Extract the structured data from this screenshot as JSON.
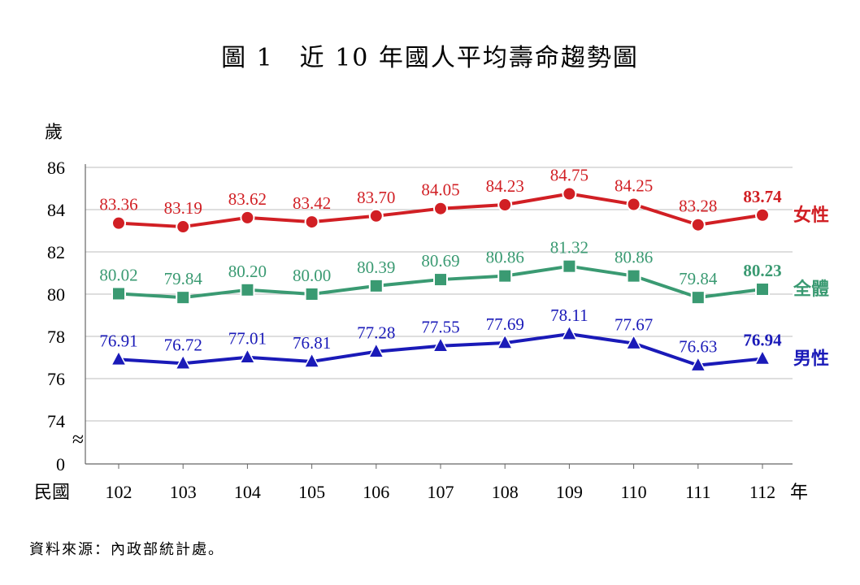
{
  "chart_data": {
    "type": "line",
    "title": "圖 1　近 10 年國人平均壽命趨勢圖",
    "ylabel": "歲",
    "xlabel_prefix": "民國",
    "xlabel_suffix": "年",
    "categories": [
      "102",
      "103",
      "104",
      "105",
      "106",
      "107",
      "108",
      "109",
      "110",
      "111",
      "112"
    ],
    "y_ticks": [
      "86",
      "84",
      "82",
      "80",
      "78",
      "76",
      "74",
      "0"
    ],
    "y_break_symbol": "≈",
    "ylim": [
      74,
      86
    ],
    "axis_break": true,
    "grid": "horizontal",
    "legend": "right-end labels",
    "series": [
      {
        "name": "女性",
        "color": "#d11f24",
        "marker": "circle",
        "values": [
          83.36,
          83.19,
          83.62,
          83.42,
          83.7,
          84.05,
          84.23,
          84.75,
          84.25,
          83.28,
          83.74
        ],
        "labels": [
          "83.36",
          "83.19",
          "83.62",
          "83.42",
          "83.70",
          "84.05",
          "84.23",
          "84.75",
          "84.25",
          "83.28",
          "83.74"
        ]
      },
      {
        "name": "全體",
        "color": "#3a9a72",
        "marker": "square",
        "values": [
          80.02,
          79.84,
          80.2,
          80.0,
          80.39,
          80.69,
          80.86,
          81.32,
          80.86,
          79.84,
          80.23
        ],
        "labels": [
          "80.02",
          "79.84",
          "80.20",
          "80.00",
          "80.39",
          "80.69",
          "80.86",
          "81.32",
          "80.86",
          "79.84",
          "80.23"
        ]
      },
      {
        "name": "男性",
        "color": "#1a1ab8",
        "marker": "triangle",
        "values": [
          76.91,
          76.72,
          77.01,
          76.81,
          77.28,
          77.55,
          77.69,
          78.11,
          77.67,
          76.63,
          76.94
        ],
        "labels": [
          "76.91",
          "76.72",
          "77.01",
          "76.81",
          "77.28",
          "77.55",
          "77.69",
          "78.11",
          "77.67",
          "76.63",
          "76.94"
        ]
      }
    ]
  },
  "source_note": "資料來源：內政部統計處。"
}
